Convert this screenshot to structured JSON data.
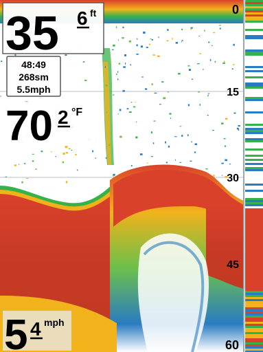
{
  "depth": {
    "value": "35",
    "decimal": "6",
    "unit": "ft"
  },
  "info_box": {
    "time": "48:49",
    "distance": "268sm",
    "speed": "5.5mph"
  },
  "temperature": {
    "value": "70",
    "decimal": "2",
    "unit": "°F"
  },
  "speed": {
    "value": "5",
    "decimal": "4",
    "unit": "mph"
  },
  "depth_scale": {
    "labels": [
      "0",
      "15",
      "30",
      "45",
      "60"
    ]
  },
  "colors": {
    "background": "#ffffff",
    "bottom_strong": "#d9412b",
    "bottom_mid": "#f2b21b",
    "bottom_weak": "#37b24b",
    "noise": "#2a7cc2",
    "panel": "#e9dfc4",
    "scale_line": "#9aa6b2"
  }
}
